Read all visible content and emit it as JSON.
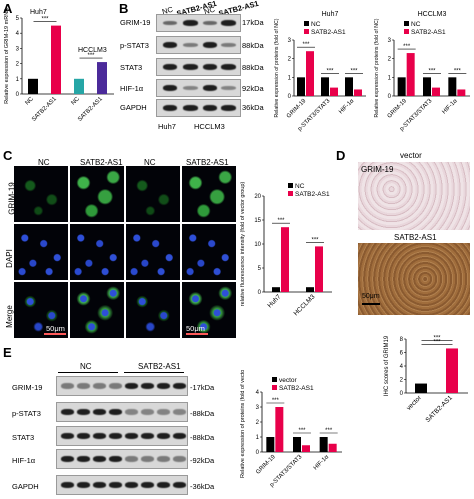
{
  "panels": {
    "A": "A",
    "B": "B",
    "C": "C",
    "D": "D",
    "E": "E"
  },
  "colors": {
    "nc": "#000000",
    "satb2": "#e8004a",
    "teal": "#26a6a6",
    "purple": "#4b2a9a"
  },
  "panelA": {
    "chart_data": {
      "type": "bar",
      "ylabel": "Relative expression of GRIM-19 mRNA",
      "group_labels": [
        "Huh7",
        "HCCLM3"
      ],
      "categories": [
        "NC",
        "SATB2-AS1",
        "NC",
        "SATB2-AS1"
      ],
      "values": [
        1.0,
        4.5,
        1.0,
        2.1
      ],
      "ylim": [
        0,
        5
      ],
      "yticks": [
        "0",
        "1",
        "2",
        "3",
        "4",
        "5"
      ],
      "sig": [
        "***",
        "***"
      ]
    }
  },
  "panelB": {
    "col_headers": [
      "NC",
      "SATB2-AS1",
      "NC",
      "SATB2-AS1"
    ],
    "row_labels": [
      "GRIM-19",
      "p-STAT3",
      "STAT3",
      "HIF-1α",
      "GAPDH"
    ],
    "kda_labels": [
      "17kDa",
      "88kDa",
      "88kDa",
      "92kDa",
      "36kDa"
    ],
    "cell_lines": [
      "Huh7",
      "HCCLM3"
    ],
    "charts": [
      {
        "type": "bar",
        "title": "Huh7",
        "ylabel": "Relative expression of proteins (fold of NC)",
        "legend": [
          "NC",
          "SATB2-AS1"
        ],
        "categories": [
          "GRIM-19",
          "p-STAT3/STAT3",
          "HIF-1α"
        ],
        "series": [
          {
            "name": "NC",
            "values": [
              1.0,
              1.0,
              1.0
            ]
          },
          {
            "name": "SATB2-AS1",
            "values": [
              2.4,
              0.45,
              0.35
            ]
          }
        ],
        "ylim": [
          0,
          3
        ],
        "yticks": [
          "0",
          "1",
          "2",
          "3"
        ],
        "sig": [
          "***",
          "***",
          "***"
        ]
      },
      {
        "type": "bar",
        "title": "HCCLM3",
        "ylabel": "Relative expression of proteins (fold of NC)",
        "legend": [
          "NC",
          "SATB2-AS1"
        ],
        "categories": [
          "GRIM-19",
          "p-STAT3/STAT3",
          "HIF-1α"
        ],
        "series": [
          {
            "name": "NC",
            "values": [
              1.0,
              1.0,
              1.0
            ]
          },
          {
            "name": "SATB2-AS1",
            "values": [
              2.3,
              0.45,
              0.35
            ]
          }
        ],
        "ylim": [
          0,
          3
        ],
        "yticks": [
          "0",
          "1",
          "2",
          "3"
        ],
        "sig": [
          "***",
          "***",
          "***"
        ]
      }
    ]
  },
  "panelC": {
    "col_headers": [
      "NC",
      "SATB2-AS1",
      "NC",
      "SATB2-AS1"
    ],
    "row_labels": [
      "GRIM-19",
      "DAPI",
      "Merge"
    ],
    "scalebar": "50μm",
    "chart": {
      "type": "bar",
      "ylabel": "relative fluorescence intensity (fold of vector group)",
      "legend": [
        "NC",
        "SATB2-AS1"
      ],
      "categories": [
        "Huh7",
        "HCCLM3"
      ],
      "series": [
        {
          "name": "NC",
          "values": [
            1.0,
            1.0
          ]
        },
        {
          "name": "SATB2-AS1",
          "values": [
            13.5,
            9.5
          ]
        }
      ],
      "ylim": [
        0,
        20
      ],
      "yticks": [
        "0",
        "5",
        "10",
        "15",
        "20"
      ],
      "sig": [
        "***",
        "***"
      ]
    }
  },
  "panelD": {
    "image_labels": [
      "vector",
      "GRIM-19",
      "SATB2-AS1"
    ],
    "scalebar": "50μm",
    "chart": {
      "type": "bar",
      "ylabel": "IHC scores of GRIM19",
      "categories": [
        "vector",
        "SATB2-AS1"
      ],
      "values": [
        1.4,
        6.6
      ],
      "ylim": [
        0,
        8
      ],
      "yticks": [
        "0",
        "2",
        "4",
        "6",
        "8"
      ],
      "sig": [
        "***"
      ]
    }
  },
  "panelE": {
    "group_headers": [
      "NC",
      "SATB2-AS1"
    ],
    "row_labels": [
      "GRIM-19",
      "p-STAT3",
      "STAT3",
      "HIF-1α",
      "GAPDH"
    ],
    "kda_labels": [
      "-17kDa",
      "-88kDa",
      "-88kDa",
      "-92kDa",
      "-36kDa"
    ],
    "chart": {
      "type": "bar",
      "ylabel": "Relative expression of proteins (fold of vector)",
      "legend": [
        "vector",
        "SATB2-AS1"
      ],
      "categories": [
        "GRIM-19",
        "p-STAT3/STAT3",
        "HIF-1α"
      ],
      "series": [
        {
          "name": "vector",
          "values": [
            1.0,
            1.0,
            1.0
          ]
        },
        {
          "name": "SATB2-AS1",
          "values": [
            3.0,
            0.45,
            0.55
          ]
        }
      ],
      "ylim": [
        0,
        4
      ],
      "yticks": [
        "0",
        "1",
        "2",
        "3",
        "4"
      ],
      "sig": [
        "***",
        "***",
        "***"
      ]
    }
  }
}
